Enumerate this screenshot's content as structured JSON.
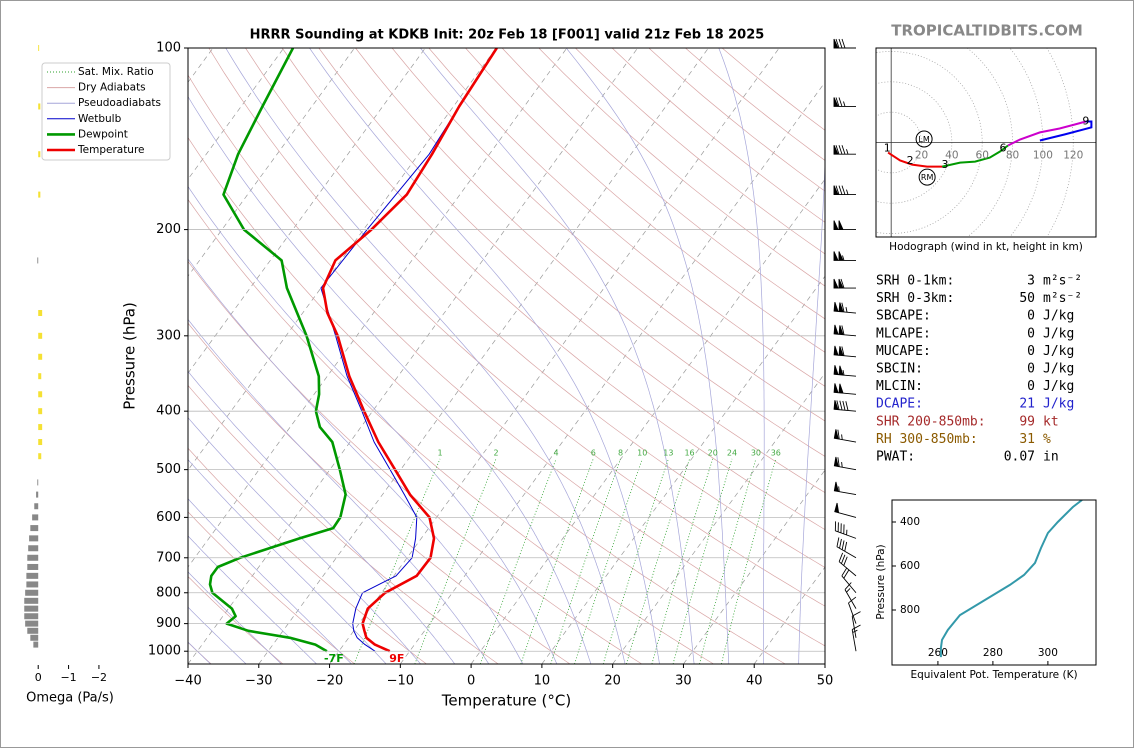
{
  "site": "TROPICALTIDBITS.COM",
  "chart_data": [
    {
      "type": "skewt",
      "title": "HRRR Sounding at KDKB Init: 20z Feb 18 [F001] valid 21z Feb 18 2025",
      "xlabel": "Temperature (°C)",
      "ylabel": "Pressure (hPa)",
      "xlim": [
        -40,
        50
      ],
      "xticks": [
        {
          "value": -40,
          "label": "−40"
        },
        {
          "value": -30,
          "label": "−30"
        },
        {
          "value": -20,
          "label": "−20"
        },
        {
          "value": -10,
          "label": "−10"
        },
        0,
        10,
        20,
        30,
        40,
        50
      ],
      "ylim": [
        1050,
        100
      ],
      "ylog": true,
      "yticks": [
        100,
        200,
        300,
        400,
        500,
        600,
        700,
        800,
        900,
        1000
      ],
      "grid": true,
      "legend": "upper left",
      "background_lines": [
        {
          "name": "Sat. Mix. Ratio",
          "color": "#2ca02c",
          "style": "dotted"
        },
        {
          "name": "Dry Adiabats",
          "color": "#d9a6a6",
          "style": "solid"
        },
        {
          "name": "Pseudoadiabats",
          "color": "#a6a6d9",
          "style": "solid"
        }
      ],
      "mixing_ratio_values": [
        1,
        2,
        4,
        6,
        8,
        10,
        13,
        16,
        20,
        24,
        30,
        36
      ],
      "series": [
        {
          "name": "Wetbulb",
          "color": "#0000cc",
          "weight": "thin",
          "pressure": [
            1000,
            975,
            950,
            925,
            900,
            850,
            800,
            750,
            700,
            650,
            600,
            550,
            500,
            450,
            400,
            350,
            300,
            250,
            200,
            150,
            100
          ],
          "values": [
            -14.9,
            -17,
            -18.8,
            -20,
            -20.9,
            -22,
            -22.7,
            -19.7,
            -19.3,
            -20.8,
            -22.8,
            -26.9,
            -31.5,
            -36.6,
            -41.5,
            -47.2,
            -53,
            -60,
            -59.5,
            -58.5,
            -60
          ]
        },
        {
          "name": "Dewpoint",
          "color": "#009900",
          "weight": "bold",
          "surface_label": "-7F",
          "pressure": [
            1000,
            975,
            950,
            925,
            900,
            875,
            850,
            800,
            775,
            750,
            725,
            700,
            650,
            625,
            600,
            550,
            500,
            450,
            425,
            400,
            375,
            350,
            300,
            250,
            225,
            200,
            175,
            150,
            125,
            100
          ],
          "values": [
            -21.7,
            -24,
            -28.3,
            -34.9,
            -38.7,
            -38.2,
            -39.5,
            -43.9,
            -45.1,
            -45.8,
            -45.8,
            -43.6,
            -37.2,
            -33.5,
            -33.6,
            -35.2,
            -38.6,
            -42.5,
            -45.8,
            -48,
            -49.3,
            -51.2,
            -57.1,
            -64.8,
            -68.4,
            -76.9,
            -83.4,
            -85.5,
            -87,
            -88.7
          ]
        },
        {
          "name": "Temperature",
          "color": "#ee0000",
          "weight": "bold",
          "surface_label": "9F",
          "pressure": [
            1000,
            975,
            950,
            925,
            900,
            850,
            800,
            750,
            700,
            650,
            600,
            550,
            500,
            450,
            400,
            350,
            300,
            275,
            250,
            225,
            200,
            175,
            150,
            125,
            100
          ],
          "values": [
            -12.8,
            -15.6,
            -17.5,
            -18.5,
            -19.5,
            -20.3,
            -19.5,
            -16.8,
            -16.7,
            -18.2,
            -21,
            -26.1,
            -30.8,
            -36,
            -41.2,
            -46.9,
            -52.7,
            -56.5,
            -59.7,
            -60.8,
            -58.9,
            -57.5,
            -58.1,
            -59.2,
            -59.9
          ]
        }
      ],
      "wind": {
        "pressure": [
          100,
          125,
          150,
          175,
          200,
          225,
          250,
          275,
          300,
          325,
          350,
          375,
          400,
          450,
          500,
          550,
          600,
          650,
          700,
          750,
          800,
          850,
          900,
          950,
          1000
        ],
        "speed": [
          80,
          75,
          85,
          85,
          100,
          105,
          110,
          115,
          110,
          110,
          105,
          100,
          90,
          65,
          65,
          55,
          50,
          45,
          40,
          30,
          20,
          15,
          10,
          10,
          15
        ],
        "direction": [
          270,
          270,
          270,
          270,
          270,
          270,
          270,
          275,
          275,
          275,
          275,
          275,
          275,
          280,
          280,
          280,
          285,
          290,
          300,
          310,
          320,
          330,
          340,
          350,
          350
        ]
      }
    },
    {
      "type": "hodograph",
      "caption": "Hodograph (wind in kt, height in km)",
      "xlim": [
        -10,
        135
      ],
      "ylim": [
        -62,
        62
      ],
      "xticks": [
        20,
        40,
        60,
        80,
        100,
        120
      ],
      "series": [
        {
          "color": "#ee0000",
          "x": [
            -2,
            5.9,
            13.8,
            23.7,
            33.6
          ],
          "values": [
            -6.6,
            -11.8,
            -14.5,
            -15.8,
            -15.8
          ]
        },
        {
          "color": "#009900",
          "x": [
            33.6,
            45.4,
            55.3,
            65,
            71.7,
            77
          ],
          "values": [
            -15.8,
            -13.2,
            -12.5,
            -9.9,
            -5.9,
            -2
          ]
        },
        {
          "color": "#cc00cc",
          "x": [
            77,
            84.9,
            98,
            111,
            121,
            128.3
          ],
          "values": [
            -2,
            2,
            6.6,
            9.2,
            11.8,
            13.8
          ]
        },
        {
          "color": "#0000ee",
          "x": [
            128.3,
            132,
            132,
            114.5,
            98
          ],
          "values": [
            13.8,
            13.8,
            9.9,
            5.3,
            1.3
          ]
        }
      ],
      "height_labels": [
        {
          "label": 1,
          "u": -2.6,
          "v": -3.9
        },
        {
          "label": 2,
          "u": 12.5,
          "v": -12.2
        },
        {
          "label": 3,
          "u": 35.5,
          "v": -14.8
        },
        {
          "label": 6,
          "u": 73.7,
          "v": -3.9
        },
        {
          "label": 9,
          "u": 128.3,
          "v": 13.8
        }
      ],
      "storm_motion": [
        {
          "label": "LM",
          "u": 21.7,
          "v": 2.3
        },
        {
          "label": "RM",
          "u": 23.7,
          "v": -22.7
        }
      ]
    },
    {
      "type": "profile",
      "xlabel": "Equivalent Pot. Temperature (K)",
      "ylabel": "Pressure (hPa)",
      "xlim": [
        243.3,
        317.5
      ],
      "xticks": [
        260,
        280,
        300
      ],
      "ylim": [
        1050,
        300
      ],
      "yticks": [
        400,
        600,
        800
      ],
      "color": "#3399aa",
      "pressure": [
        1014,
        973,
        936,
        891,
        823,
        741,
        686,
        641,
        586,
        518,
        450,
        400,
        332,
        300
      ],
      "values": [
        261.1,
        261.1,
        261.5,
        263.6,
        268,
        278.9,
        286.2,
        291.3,
        295.3,
        297.5,
        300,
        303.6,
        309.1,
        312.4
      ]
    },
    {
      "type": "omega",
      "xlabel": "Omega (Pa/s)",
      "xlim": [
        0.6,
        -2.2
      ],
      "xticks": [
        0,
        {
          "value": -1,
          "label": "−1"
        },
        {
          "value": -2,
          "label": "−2"
        }
      ],
      "ylim": [
        1050,
        100
      ],
      "ylog": true,
      "rising_color": "#f5e133",
      "sinking_color": "#888888",
      "pressure": [
        100,
        125,
        150,
        175,
        225,
        275,
        300,
        325,
        350,
        375,
        400,
        425,
        450,
        475,
        525,
        550,
        575,
        600,
        625,
        650,
        675,
        700,
        725,
        750,
        775,
        800,
        825,
        850,
        875,
        900,
        925,
        950,
        975
      ],
      "values": [
        -0.03,
        -0.07,
        -0.07,
        -0.07,
        0.03,
        -0.13,
        -0.13,
        -0.13,
        -0.1,
        -0.13,
        -0.13,
        -0.13,
        -0.13,
        -0.1,
        0.03,
        0.07,
        0.13,
        0.2,
        0.26,
        0.3,
        0.33,
        0.36,
        0.36,
        0.39,
        0.39,
        0.43,
        0.46,
        0.46,
        0.46,
        0.43,
        0.36,
        0.26,
        0.16
      ]
    }
  ],
  "indices": {
    "rows": [
      {
        "label": "SRH 0-1km:",
        "value": 3,
        "unit": "m²s⁻²"
      },
      {
        "label": "SRH 0-3km:",
        "value": 50,
        "unit": "m²s⁻²"
      },
      {
        "label": "SBCAPE:",
        "value": 0,
        "unit": "J/kg"
      },
      {
        "label": "MLCAPE:",
        "value": 0,
        "unit": "J/kg"
      },
      {
        "label": "MUCAPE:",
        "value": 0,
        "unit": "J/kg"
      },
      {
        "label": "SBCIN:",
        "value": 0,
        "unit": "J/kg"
      },
      {
        "label": "MLCIN:",
        "value": 0,
        "unit": "J/kg"
      },
      {
        "label": "DCAPE:",
        "value": 21,
        "unit": "J/kg",
        "color": "#2222cc"
      },
      {
        "label": "SHR 200-850mb:",
        "value": 99,
        "unit": "kt",
        "color": "#a52a2a"
      },
      {
        "label": "RH 300-850mb:",
        "value": 31,
        "unit": "%",
        "color": "#8b5a00"
      },
      {
        "label": "PWAT:",
        "value": 0.07,
        "unit": "in"
      }
    ]
  }
}
